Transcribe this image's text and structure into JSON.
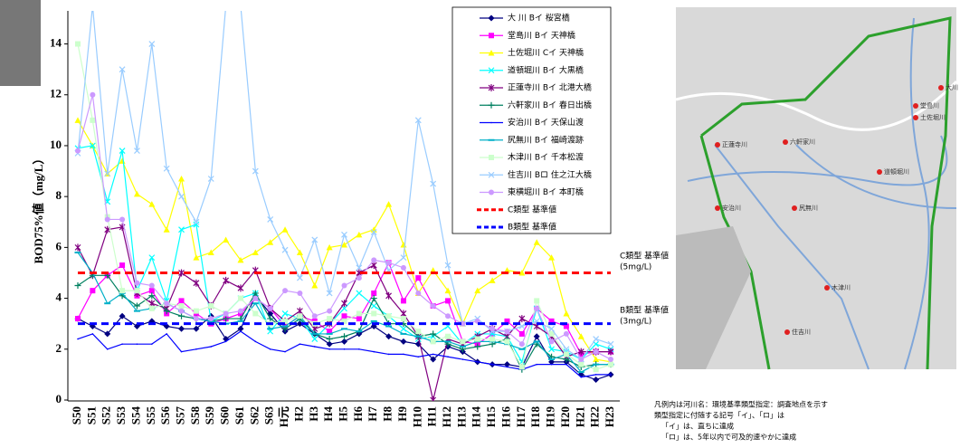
{
  "chart_data": {
    "type": "line",
    "y_label": "BOD75%値（mg/L）",
    "categories": [
      "S50",
      "S51",
      "S52",
      "S53",
      "S54",
      "S55",
      "S56",
      "S57",
      "S58",
      "S59",
      "S60",
      "S61",
      "S62",
      "S63",
      "H元",
      "H2",
      "H3",
      "H4",
      "H5",
      "H6",
      "H7",
      "H8",
      "H9",
      "H10",
      "H11",
      "H12",
      "H13",
      "H14",
      "H15",
      "H16",
      "H17",
      "H18",
      "H19",
      "H20",
      "H21",
      "H22",
      "H23"
    ],
    "ylim": [
      0,
      15.3
    ],
    "yticks": [
      0,
      2,
      4,
      6,
      8,
      10,
      12,
      14
    ],
    "series": [
      {
        "name": "大 川 Bイ 桜宮橋",
        "color": "#000080",
        "marker": "diamond",
        "values": [
          3.2,
          2.9,
          2.6,
          3.3,
          2.9,
          3.1,
          2.9,
          2.8,
          2.8,
          3.3,
          2.4,
          2.8,
          4.1,
          3.4,
          2.7,
          3.0,
          2.6,
          2.2,
          2.3,
          2.6,
          2.9,
          2.5,
          2.3,
          2.2,
          1.6,
          2.1,
          1.9,
          1.5,
          1.4,
          1.4,
          1.3,
          2.5,
          1.5,
          1.5,
          1.0,
          0.8,
          1.0
        ]
      },
      {
        "name": "堂島川 Bイ 天神橋",
        "color": "#ff00ff",
        "marker": "square",
        "values": [
          3.2,
          4.3,
          4.9,
          5.3,
          4.1,
          4.3,
          3.4,
          3.9,
          3.4,
          3.0,
          3.2,
          3.4,
          4.0,
          3.6,
          2.9,
          3.3,
          3.1,
          2.7,
          3.3,
          3.2,
          4.2,
          5.4,
          3.9,
          4.8,
          3.7,
          3.9,
          2.3,
          2.2,
          2.6,
          3.1,
          2.6,
          3.6,
          3.1,
          2.9,
          1.8,
          1.9,
          1.9
        ]
      },
      {
        "name": "土佐堀川 Cイ 天神橋",
        "color": "#ffff00",
        "marker": "triangle",
        "values": [
          11.0,
          10.0,
          8.9,
          9.4,
          8.1,
          7.7,
          6.7,
          8.7,
          5.6,
          5.8,
          6.3,
          5.5,
          5.8,
          6.2,
          6.7,
          5.8,
          4.5,
          6.0,
          6.1,
          6.5,
          6.7,
          7.7,
          6.1,
          4.2,
          5.1,
          4.3,
          3.0,
          4.3,
          4.7,
          5.1,
          5.0,
          6.2,
          5.6,
          3.4,
          2.5,
          1.6,
          1.5
        ]
      },
      {
        "name": "道頓堀川 Bイ 大黒橋",
        "color": "#00ffff",
        "marker": "x",
        "values": [
          9.9,
          10.0,
          7.8,
          9.8,
          4.3,
          5.6,
          3.9,
          6.7,
          6.9,
          3.1,
          3.4,
          4.0,
          4.2,
          2.7,
          3.4,
          3.2,
          2.4,
          3.0,
          3.6,
          4.2,
          3.7,
          3.3,
          2.8,
          2.4,
          2.5,
          2.9,
          2.2,
          2.6,
          2.6,
          2.5,
          1.5,
          3.6,
          2.0,
          1.9,
          1.6,
          2.2,
          2.0
        ]
      },
      {
        "name": "正蓮寺川 Bイ 北港大橋",
        "color": "#800080",
        "marker": "star",
        "values": [
          6.0,
          4.9,
          6.7,
          6.8,
          4.2,
          3.8,
          3.6,
          5.0,
          4.6,
          3.7,
          4.7,
          4.4,
          5.1,
          3.6,
          3.1,
          3.5,
          2.8,
          3.0,
          3.8,
          5.0,
          5.3,
          4.1,
          3.4,
          2.5,
          0.0,
          2.4,
          2.2,
          2.5,
          2.8,
          2.5,
          3.2,
          2.9,
          2.5,
          1.7,
          1.9,
          1.9,
          1.9
        ]
      },
      {
        "name": "六軒家川 Bイ 春日出橋",
        "color": "#008060",
        "marker": "plus",
        "values": [
          4.5,
          4.9,
          4.9,
          4.1,
          3.7,
          4.1,
          3.5,
          3.3,
          3.2,
          3.1,
          3.2,
          3.2,
          4.2,
          3.2,
          2.8,
          3.2,
          2.6,
          2.4,
          2.5,
          2.7,
          4.0,
          3.0,
          3.0,
          2.5,
          2.6,
          2.2,
          2.0,
          2.1,
          2.2,
          2.4,
          1.2,
          2.2,
          1.7,
          1.6,
          1.3,
          1.4,
          1.4
        ]
      },
      {
        "name": "安治川 Bイ 天保山渡",
        "color": "#0000ff",
        "marker": "none",
        "values": [
          2.4,
          2.6,
          2.0,
          2.2,
          2.2,
          2.2,
          2.6,
          1.9,
          2.0,
          2.1,
          2.3,
          2.7,
          2.3,
          2.0,
          1.9,
          2.2,
          2.1,
          2.0,
          2.0,
          2.0,
          1.9,
          1.8,
          1.8,
          1.7,
          1.8,
          1.7,
          1.6,
          1.5,
          1.4,
          1.3,
          1.2,
          1.4,
          1.4,
          1.4,
          0.9,
          1.0,
          1.0
        ]
      },
      {
        "name": "尻無川 Bイ 福崎渡跡",
        "color": "#00b0c8",
        "marker": "dash",
        "values": [
          5.8,
          5.0,
          3.8,
          4.2,
          3.5,
          3.6,
          3.8,
          3.5,
          3.2,
          3.1,
          3.0,
          3.1,
          3.8,
          2.8,
          2.9,
          3.3,
          2.6,
          2.6,
          2.8,
          2.7,
          3.1,
          2.9,
          2.6,
          2.5,
          2.3,
          2.3,
          2.1,
          2.3,
          2.3,
          2.2,
          2.0,
          2.3,
          1.6,
          1.8,
          1.1,
          1.4,
          1.4
        ]
      },
      {
        "name": "木津川 Bイ 千本松渡",
        "color": "#ccffcc",
        "marker": "square",
        "values": [
          14.0,
          11.0,
          7.2,
          4.3,
          4.3,
          3.6,
          3.8,
          3.7,
          3.5,
          3.7,
          3.4,
          4.0,
          3.4,
          3.0,
          3.1,
          3.3,
          3.0,
          3.2,
          3.1,
          3.4,
          3.4,
          3.3,
          3.2,
          2.7,
          2.3,
          2.5,
          2.3,
          2.4,
          2.4,
          2.3,
          1.3,
          3.9,
          2.6,
          1.8,
          1.4,
          1.2,
          1.4
        ]
      },
      {
        "name": "住吉川 Bロ 住之江大橋",
        "color": "#99ccff",
        "marker": "x",
        "values": [
          9.7,
          15.5,
          8.9,
          13.0,
          9.8,
          14.0,
          9.1,
          8.0,
          7.0,
          8.7,
          15.5,
          15.5,
          9.0,
          7.1,
          5.9,
          4.8,
          6.3,
          4.2,
          6.5,
          5.2,
          6.6,
          5.1,
          5.6,
          11.0,
          8.5,
          5.3,
          3.0,
          3.2,
          2.7,
          2.7,
          2.9,
          3.1,
          2.8,
          2.0,
          1.6,
          2.4,
          2.2
        ]
      },
      {
        "name": "東横堀川 Bイ 本町橋",
        "color": "#cc99ff",
        "marker": "circle",
        "values": [
          9.8,
          12.0,
          7.1,
          7.1,
          4.6,
          4.5,
          3.8,
          3.5,
          3.2,
          3.2,
          3.4,
          3.5,
          4.0,
          3.6,
          4.3,
          4.2,
          3.3,
          3.5,
          4.5,
          4.8,
          5.5,
          5.4,
          5.2,
          4.2,
          3.7,
          3.3,
          3.0,
          3.1,
          2.8,
          2.7,
          2.2,
          3.6,
          2.3,
          2.6,
          1.6,
          1.9,
          1.6
        ]
      }
    ],
    "reference_lines": [
      {
        "name": "C類型 基準値",
        "color": "#ff0000",
        "value": 5,
        "sublabel": "(5mg/L)"
      },
      {
        "name": "B類型 基準値",
        "color": "#0000ff",
        "value": 3,
        "sublabel": "(3mg/L)"
      }
    ]
  },
  "map": {
    "labels": [
      "正蓮寺川",
      "六軒家川",
      "道頓堀川",
      "安治川",
      "尻無川",
      "木津川",
      "住吉川",
      "堂島川",
      "土佐堀川",
      "大川"
    ]
  },
  "notes": [
    "凡例内は河川名：環境基準類型指定：調査地点を示す",
    "類型指定に付随する記号「イ」、「ロ」は",
    "「イ」は、直ちに達成",
    "「ロ」は、5年以内で可及的速やかに達成"
  ]
}
